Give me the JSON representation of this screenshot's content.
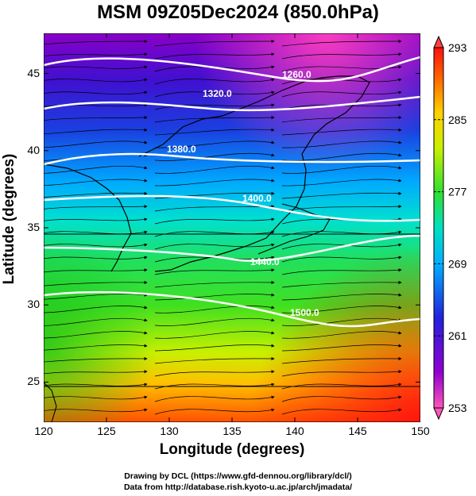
{
  "title": "MSM 09Z05Dec2024 (850.0hPa)",
  "map": {
    "x_axis": {
      "label": "Longitude (degrees)",
      "range": [
        120,
        150
      ],
      "ticks": [
        "120",
        "125",
        "130",
        "135",
        "140",
        "145",
        "150"
      ]
    },
    "y_axis": {
      "label": "Latitude  (degrees)",
      "range": [
        22.4,
        47.6
      ],
      "ticks": [
        "25",
        "30",
        "35",
        "40",
        "45"
      ]
    },
    "variable": "temperature (K)",
    "streamlines": "wind",
    "contours": {
      "color": "#ffffff",
      "labels": [
        "1260.0",
        "1320.0",
        "1380.0",
        "1400.0",
        "1440.0",
        "1500.0"
      ]
    }
  },
  "colorbar": {
    "min": 253,
    "max": 293,
    "ticks": [
      "293",
      "285",
      "277",
      "269",
      "261",
      "253"
    ],
    "colors": [
      "#ff55bb",
      "#9000d0",
      "#2222dd",
      "#00b0ff",
      "#00e0c0",
      "#30e030",
      "#c8f000",
      "#ffd000",
      "#ff6000",
      "#ff1010"
    ]
  },
  "credits": {
    "line1": "Drawing by DCL (https://www.gfd-dennou.org/library/dcl/)",
    "line2": "Data from http://database.rish.kyoto-u.ac.jp/arch/jmadata/"
  }
}
